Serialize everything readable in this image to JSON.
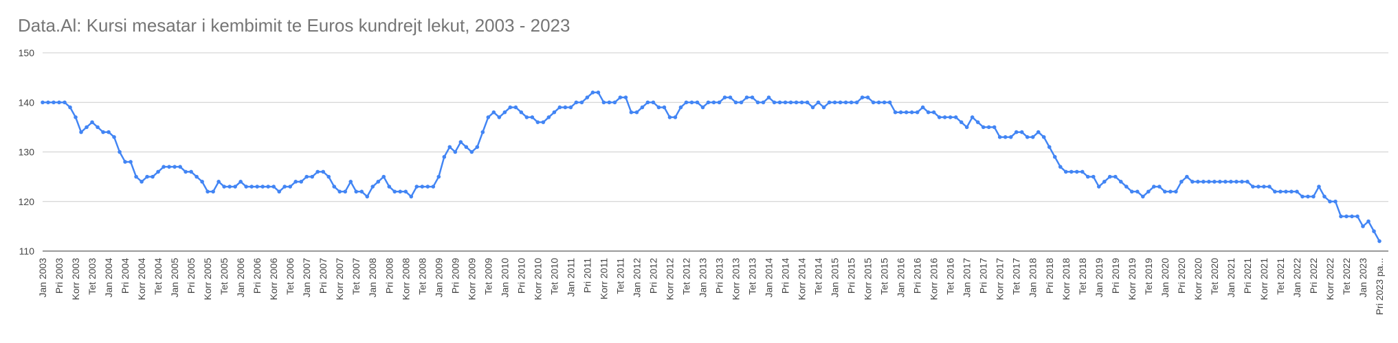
{
  "chart_data": {
    "type": "line",
    "title": "Data.Al: Kursi mesatar i kembimit te Euros kundrejt lekut, 2003 - 2023",
    "categories": [
      "Jan 2003",
      null,
      null,
      "Pri 2003",
      null,
      null,
      "Korr 2003",
      null,
      null,
      "Tet 2003",
      null,
      null,
      "Jan 2004",
      null,
      null,
      "Pri 2004",
      null,
      null,
      "Korr 2004",
      null,
      null,
      "Tet 2004",
      null,
      null,
      "Jan 2005",
      null,
      null,
      "Pri 2005",
      null,
      null,
      "Korr 2005",
      null,
      null,
      "Tet 2005",
      null,
      null,
      "Jan 2006",
      null,
      null,
      "Pri 2006",
      null,
      null,
      "Korr 2006",
      null,
      null,
      "Tet 2006",
      null,
      null,
      "Jan 2007",
      null,
      null,
      "Pri 2007",
      null,
      null,
      "Korr 2007",
      null,
      null,
      "Tet 2007",
      null,
      null,
      "Jan 2008",
      null,
      null,
      "Pri 2008",
      null,
      null,
      "Korr 2008",
      null,
      null,
      "Tet 2008",
      null,
      null,
      "Jan 2009",
      null,
      null,
      "Pri 2009",
      null,
      null,
      "Korr 2009",
      null,
      null,
      "Tet 2009",
      null,
      null,
      "Jan 2010",
      null,
      null,
      "Pri 2010",
      null,
      null,
      "Korr 2010",
      null,
      null,
      "Tet 2010",
      null,
      null,
      "Jan 2011",
      null,
      null,
      "Pri 2011",
      null,
      null,
      "Korr 2011",
      null,
      null,
      "Tet 2011",
      null,
      null,
      "Jan 2012",
      null,
      null,
      "Pri 2012",
      null,
      null,
      "Korr 2012",
      null,
      null,
      "Tet 2012",
      null,
      null,
      "Jan 2013",
      null,
      null,
      "Pri 2013",
      null,
      null,
      "Korr 2013",
      null,
      null,
      "Tet 2013",
      null,
      null,
      "Jan 2014",
      null,
      null,
      "Pri 2014",
      null,
      null,
      "Korr 2014",
      null,
      null,
      "Tet 2014",
      null,
      null,
      "Jan 2015",
      null,
      null,
      "Pri 2015",
      null,
      null,
      "Korr 2015",
      null,
      null,
      "Tet 2015",
      null,
      null,
      "Jan 2016",
      null,
      null,
      "Pri 2016",
      null,
      null,
      "Korr 2016",
      null,
      null,
      "Tet 2016",
      null,
      null,
      "Jan 2017",
      null,
      null,
      "Pri 2017",
      null,
      null,
      "Korr 2017",
      null,
      null,
      "Tet 2017",
      null,
      null,
      "Jan 2018",
      null,
      null,
      "Pri 2018",
      null,
      null,
      "Korr 2018",
      null,
      null,
      "Tet 2018",
      null,
      null,
      "Jan 2019",
      null,
      null,
      "Pri 2019",
      null,
      null,
      "Korr 2019",
      null,
      null,
      "Tet 2019",
      null,
      null,
      "Jan 2020",
      null,
      null,
      "Pri 2020",
      null,
      null,
      "Korr 2020",
      null,
      null,
      "Tet 2020",
      null,
      null,
      "Jan 2021",
      null,
      null,
      "Pri 2021",
      null,
      null,
      "Korr 2021",
      null,
      null,
      "Tet 2021",
      null,
      null,
      "Jan 2022",
      null,
      null,
      "Pri 2022",
      null,
      null,
      "Korr 2022",
      null,
      null,
      "Tet 2022",
      null,
      null,
      "Jan 2023",
      null,
      null,
      "Pri 2023 pa..."
    ],
    "values": [
      140,
      140,
      140,
      140,
      140,
      139,
      137,
      134,
      135,
      136,
      135,
      134,
      134,
      133,
      130,
      128,
      128,
      125,
      124,
      125,
      125,
      126,
      127,
      127,
      127,
      127,
      126,
      126,
      125,
      124,
      122,
      122,
      124,
      123,
      123,
      123,
      124,
      123,
      123,
      123,
      123,
      123,
      123,
      122,
      123,
      123,
      124,
      124,
      125,
      125,
      126,
      126,
      125,
      123,
      122,
      122,
      124,
      122,
      122,
      121,
      123,
      124,
      125,
      123,
      122,
      122,
      122,
      121,
      123,
      123,
      123,
      123,
      125,
      129,
      131,
      130,
      132,
      131,
      130,
      131,
      134,
      137,
      138,
      137,
      138,
      139,
      139,
      138,
      137,
      137,
      136,
      136,
      137,
      138,
      139,
      139,
      139,
      140,
      140,
      141,
      142,
      142,
      140,
      140,
      140,
      141,
      141,
      138,
      138,
      139,
      140,
      140,
      139,
      139,
      137,
      137,
      139,
      140,
      140,
      140,
      139,
      140,
      140,
      140,
      141,
      141,
      140,
      140,
      141,
      141,
      140,
      140,
      141,
      140,
      140,
      140,
      140,
      140,
      140,
      140,
      139,
      140,
      139,
      140,
      140,
      140,
      140,
      140,
      140,
      141,
      141,
      140,
      140,
      140,
      140,
      138,
      138,
      138,
      138,
      138,
      139,
      138,
      138,
      137,
      137,
      137,
      137,
      136,
      135,
      137,
      136,
      135,
      135,
      135,
      133,
      133,
      133,
      134,
      134,
      133,
      133,
      134,
      133,
      131,
      129,
      127,
      126,
      126,
      126,
      126,
      125,
      125,
      123,
      124,
      125,
      125,
      124,
      123,
      122,
      122,
      121,
      122,
      123,
      123,
      122,
      122,
      122,
      124,
      125,
      124,
      124,
      124,
      124,
      124,
      124,
      124,
      124,
      124,
      124,
      124,
      123,
      123,
      123,
      123,
      122,
      122,
      122,
      122,
      122,
      121,
      121,
      121,
      123,
      121,
      120,
      120,
      117,
      117,
      117,
      117,
      115,
      116,
      114,
      112
    ],
    "color": "#4285f4",
    "ylim": [
      110,
      150
    ],
    "yticks": [
      110,
      120,
      130,
      140,
      150
    ],
    "grid": true
  }
}
